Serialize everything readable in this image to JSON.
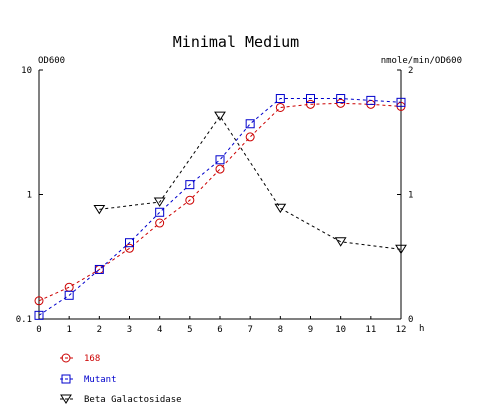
{
  "chart_data": {
    "type": "line",
    "title": "Minimal Medium",
    "left_axis_label": "OD600",
    "right_axis_label": "nmole/min/OD600",
    "x_unit_label": "h",
    "x_ticks": [
      "0",
      "1",
      "2",
      "3",
      "4",
      "5",
      "6",
      "7",
      "8",
      "9",
      "10",
      "11",
      "12"
    ],
    "x_range": [
      0,
      12
    ],
    "left_scale": "log",
    "left_ticks": [
      "0.1",
      "1",
      "10"
    ],
    "left_range": [
      0.1,
      10
    ],
    "right_ticks": [
      "0",
      "1",
      "2"
    ],
    "right_range": [
      0,
      2
    ],
    "grid": false,
    "legend_position": "bottom-left",
    "series": [
      {
        "name": "168",
        "axis": "left",
        "marker": "circle",
        "color": "#cc0000",
        "x": [
          0,
          1,
          2,
          3,
          4,
          5,
          6,
          7,
          8,
          9,
          10,
          11,
          12
        ],
        "y": [
          0.14,
          0.18,
          0.25,
          0.37,
          0.59,
          0.9,
          1.6,
          2.9,
          5.0,
          5.3,
          5.4,
          5.3,
          5.1
        ]
      },
      {
        "name": "Mutant",
        "axis": "left",
        "marker": "square",
        "color": "#0000cc",
        "x": [
          0,
          1,
          2,
          3,
          4,
          5,
          6,
          7,
          8,
          9,
          10,
          11,
          12
        ],
        "y": [
          0.107,
          0.155,
          0.25,
          0.41,
          0.72,
          1.2,
          1.9,
          3.7,
          5.9,
          5.9,
          5.9,
          5.7,
          5.5
        ]
      },
      {
        "name": "Beta Galactosidase",
        "axis": "right",
        "marker": "triangle-down",
        "color": "#000000",
        "x": [
          2,
          4,
          6,
          8,
          10,
          12
        ],
        "y": [
          0.88,
          0.94,
          1.63,
          0.89,
          0.62,
          0.56
        ]
      }
    ]
  }
}
